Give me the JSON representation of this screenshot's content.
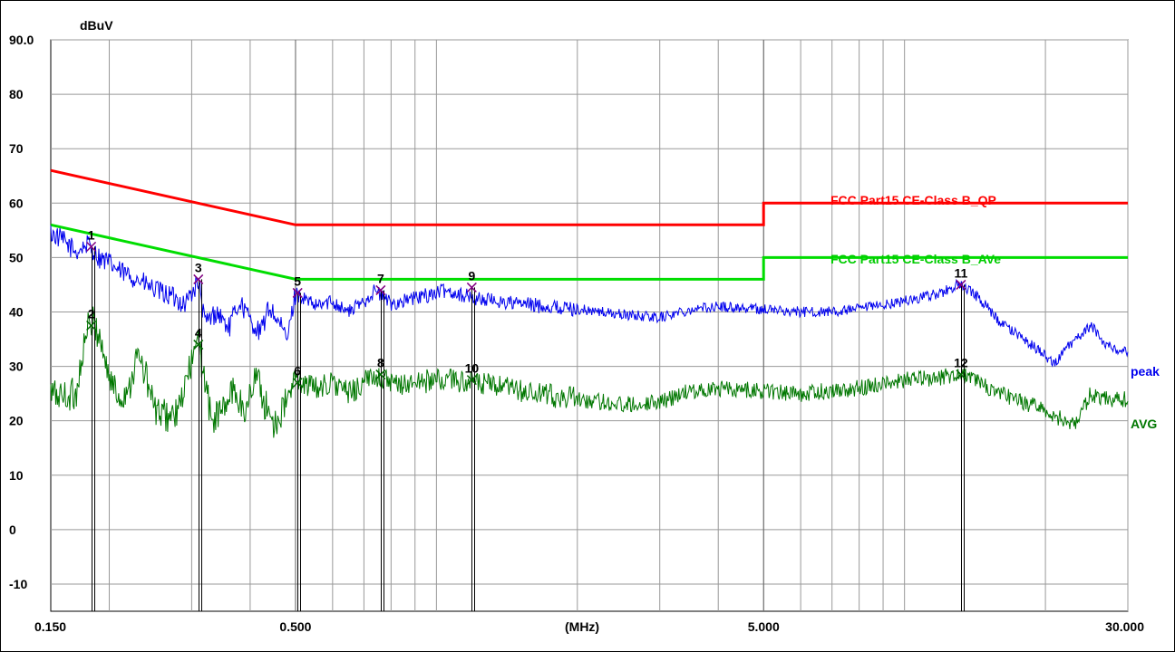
{
  "chart_data": {
    "type": "line",
    "ylabel": "dBuV",
    "xlabel": "(MHz)",
    "x_scale": "log",
    "xlim": [
      0.15,
      30.0
    ],
    "ylim": [
      -15,
      90
    ],
    "y_ticks": [
      {
        "value": 90,
        "label": "90.0"
      },
      {
        "value": 80,
        "label": "80"
      },
      {
        "value": 70,
        "label": "70"
      },
      {
        "value": 60,
        "label": "60"
      },
      {
        "value": 50,
        "label": "50"
      },
      {
        "value": 40,
        "label": "40"
      },
      {
        "value": 30,
        "label": "30"
      },
      {
        "value": 20,
        "label": "20"
      },
      {
        "value": 10,
        "label": "10"
      },
      {
        "value": 0,
        "label": "0"
      },
      {
        "value": -10,
        "label": "-10"
      }
    ],
    "x_ticks": [
      {
        "value": 0.15,
        "label": "0.150"
      },
      {
        "value": 0.5,
        "label": "0.500"
      },
      {
        "value": 5.0,
        "label": "5.000"
      },
      {
        "value": 30.0,
        "label": "30.000"
      }
    ],
    "grid": true,
    "colors": {
      "qp_limit": "#ff0000",
      "avg_limit": "#00dd00",
      "peak": "#0000ee",
      "avg": "#007700",
      "marker": "#800080",
      "marker_avg": "#006600"
    },
    "limits": [
      {
        "name": "FCC Part15 CE-Class B_QP",
        "points": [
          [
            0.15,
            66
          ],
          [
            0.5,
            56
          ],
          [
            5.0,
            56
          ],
          [
            5.0,
            60
          ],
          [
            30.0,
            60
          ]
        ]
      },
      {
        "name": "FCC Part15 CE-Class B_AVe",
        "points": [
          [
            0.15,
            56
          ],
          [
            0.5,
            46
          ],
          [
            5.0,
            46
          ],
          [
            5.0,
            50
          ],
          [
            30.0,
            50
          ]
        ]
      }
    ],
    "series": [
      {
        "name": "peak",
        "points": [
          [
            0.15,
            54.5
          ],
          [
            0.16,
            53
          ],
          [
            0.17,
            51
          ],
          [
            0.18,
            52.5
          ],
          [
            0.19,
            50
          ],
          [
            0.2,
            49
          ],
          [
            0.21,
            47.5
          ],
          [
            0.23,
            46
          ],
          [
            0.25,
            44
          ],
          [
            0.27,
            43
          ],
          [
            0.29,
            41.5
          ],
          [
            0.31,
            45.5
          ],
          [
            0.32,
            38
          ],
          [
            0.34,
            40
          ],
          [
            0.36,
            37
          ],
          [
            0.38,
            42
          ],
          [
            0.4,
            38.5
          ],
          [
            0.42,
            36
          ],
          [
            0.44,
            41
          ],
          [
            0.46,
            38
          ],
          [
            0.48,
            35
          ],
          [
            0.5,
            43.5
          ],
          [
            0.55,
            41
          ],
          [
            0.6,
            42
          ],
          [
            0.65,
            40
          ],
          [
            0.7,
            42
          ],
          [
            0.74,
            44
          ],
          [
            0.8,
            41.5
          ],
          [
            0.9,
            42.5
          ],
          [
            1.0,
            43.5
          ],
          [
            1.05,
            44
          ],
          [
            1.2,
            42.5
          ],
          [
            1.5,
            41.5
          ],
          [
            2.0,
            40.5
          ],
          [
            2.5,
            39.5
          ],
          [
            3.0,
            39
          ],
          [
            3.5,
            40.5
          ],
          [
            4.0,
            41
          ],
          [
            5.0,
            40.5
          ],
          [
            6.0,
            40
          ],
          [
            7.0,
            40
          ],
          [
            8.0,
            40.5
          ],
          [
            10.0,
            42
          ],
          [
            12.0,
            43.5
          ],
          [
            13.0,
            45
          ],
          [
            14.0,
            43.5
          ],
          [
            15.0,
            41
          ],
          [
            16.0,
            38
          ],
          [
            18.0,
            35
          ],
          [
            20.0,
            32
          ],
          [
            21.0,
            30.5
          ],
          [
            22.0,
            33
          ],
          [
            24.0,
            36
          ],
          [
            25.0,
            37.5
          ],
          [
            27.0,
            34
          ],
          [
            30.0,
            32.5
          ]
        ]
      },
      {
        "name": "AVG",
        "points": [
          [
            0.15,
            25
          ],
          [
            0.16,
            24.5
          ],
          [
            0.17,
            25
          ],
          [
            0.175,
            32
          ],
          [
            0.18,
            37
          ],
          [
            0.185,
            38
          ],
          [
            0.19,
            36
          ],
          [
            0.2,
            28
          ],
          [
            0.21,
            24
          ],
          [
            0.22,
            26
          ],
          [
            0.23,
            32
          ],
          [
            0.24,
            28
          ],
          [
            0.25,
            22
          ],
          [
            0.26,
            21
          ],
          [
            0.28,
            21
          ],
          [
            0.3,
            31
          ],
          [
            0.31,
            34
          ],
          [
            0.32,
            28
          ],
          [
            0.33,
            20
          ],
          [
            0.35,
            22
          ],
          [
            0.37,
            26
          ],
          [
            0.39,
            21
          ],
          [
            0.41,
            29
          ],
          [
            0.43,
            23
          ],
          [
            0.45,
            19.5
          ],
          [
            0.47,
            22
          ],
          [
            0.5,
            27.5
          ],
          [
            0.55,
            26
          ],
          [
            0.6,
            27
          ],
          [
            0.65,
            25
          ],
          [
            0.7,
            27
          ],
          [
            0.75,
            28.5
          ],
          [
            0.8,
            26.5
          ],
          [
            0.9,
            27
          ],
          [
            1.0,
            27.5
          ],
          [
            1.1,
            27.5
          ],
          [
            1.3,
            26.5
          ],
          [
            1.6,
            25
          ],
          [
            2.0,
            24
          ],
          [
            2.5,
            23
          ],
          [
            3.0,
            23.5
          ],
          [
            3.5,
            25.5
          ],
          [
            4.0,
            26
          ],
          [
            5.0,
            25.5
          ],
          [
            6.0,
            25
          ],
          [
            8.0,
            26
          ],
          [
            10.0,
            27.5
          ],
          [
            12.0,
            28
          ],
          [
            13.0,
            28.5
          ],
          [
            14.0,
            28
          ],
          [
            15.0,
            26
          ],
          [
            17.0,
            24
          ],
          [
            20.0,
            22
          ],
          [
            22.0,
            20
          ],
          [
            23.0,
            19
          ],
          [
            24.0,
            22
          ],
          [
            25.0,
            25
          ],
          [
            27.0,
            24
          ],
          [
            30.0,
            24
          ]
        ]
      }
    ],
    "markers": [
      {
        "id": "1",
        "x": 0.183,
        "y": 52,
        "series": "peak"
      },
      {
        "id": "2",
        "x": 0.183,
        "y": 37.5,
        "series": "AVG"
      },
      {
        "id": "3",
        "x": 0.31,
        "y": 46,
        "series": "peak"
      },
      {
        "id": "4",
        "x": 0.31,
        "y": 34,
        "series": "AVG"
      },
      {
        "id": "5",
        "x": 0.505,
        "y": 43.5,
        "series": "peak"
      },
      {
        "id": "6",
        "x": 0.505,
        "y": 27,
        "series": "AVG"
      },
      {
        "id": "7",
        "x": 0.76,
        "y": 44,
        "series": "peak"
      },
      {
        "id": "8",
        "x": 0.76,
        "y": 28.5,
        "series": "AVG"
      },
      {
        "id": "9",
        "x": 1.19,
        "y": 44.5,
        "series": "peak"
      },
      {
        "id": "10",
        "x": 1.19,
        "y": 27.5,
        "series": "AVG"
      },
      {
        "id": "11",
        "x": 13.2,
        "y": 45,
        "series": "peak"
      },
      {
        "id": "12",
        "x": 13.2,
        "y": 28.5,
        "series": "AVG"
      }
    ]
  }
}
